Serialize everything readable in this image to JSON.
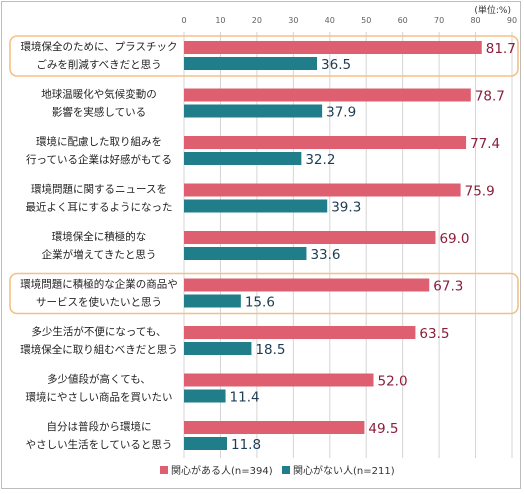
{
  "chart_data": {
    "type": "bar",
    "orientation": "horizontal",
    "unit_label": "(単位:%)",
    "xlim": [
      0,
      90
    ],
    "ticks": [
      "0",
      "10",
      "20",
      "30",
      "40",
      "50",
      "60",
      "70",
      "80",
      "90"
    ],
    "categories": [
      [
        "環境保全のために、プラスチック",
        "ごみを削減すべきだと思う"
      ],
      [
        "地球温暖化や気候変動の",
        "影響を実感している"
      ],
      [
        "環境に配慮した取り組みを",
        "行っている企業は好感がもてる"
      ],
      [
        "環境問題に関するニュースを",
        "最近よく耳にするようになった"
      ],
      [
        "環境保全に積極的な",
        "企業が増えてきたと思う"
      ],
      [
        "環境問題に積極的な企業の商品や",
        "サービスを使いたいと思う"
      ],
      [
        "多少生活が不便になっても、",
        "環境保全に取り組むべきだと思う"
      ],
      [
        "多少値段が高くても、",
        "環境にやさしい商品を買いたい"
      ],
      [
        "自分は普段から環境に",
        "やさしい生活をしていると思う"
      ]
    ],
    "series": [
      {
        "name": "関心がある人(n=394)",
        "color": "#de6070",
        "label_color": "#8b1e3a",
        "values": [
          81.7,
          78.7,
          77.4,
          75.9,
          69.0,
          67.3,
          63.5,
          52.0,
          49.5
        ],
        "labels": [
          "81.7",
          "78.7",
          "77.4",
          "75.9",
          "69.0",
          "67.3",
          "63.5",
          "52.0",
          "49.5"
        ]
      },
      {
        "name": "関心がない人(n=211)",
        "color": "#1f7e8a",
        "label_color": "#1d3d54",
        "values": [
          36.5,
          37.9,
          32.2,
          39.3,
          33.6,
          15.6,
          18.5,
          11.4,
          11.8
        ],
        "labels": [
          "36.5",
          "37.9",
          "32.2",
          "39.3",
          "33.6",
          "15.6",
          "18.5",
          "11.4",
          "11.8"
        ]
      }
    ],
    "highlighted": [
      0,
      5
    ],
    "highlight_color": "#f5c085",
    "grid": true
  }
}
